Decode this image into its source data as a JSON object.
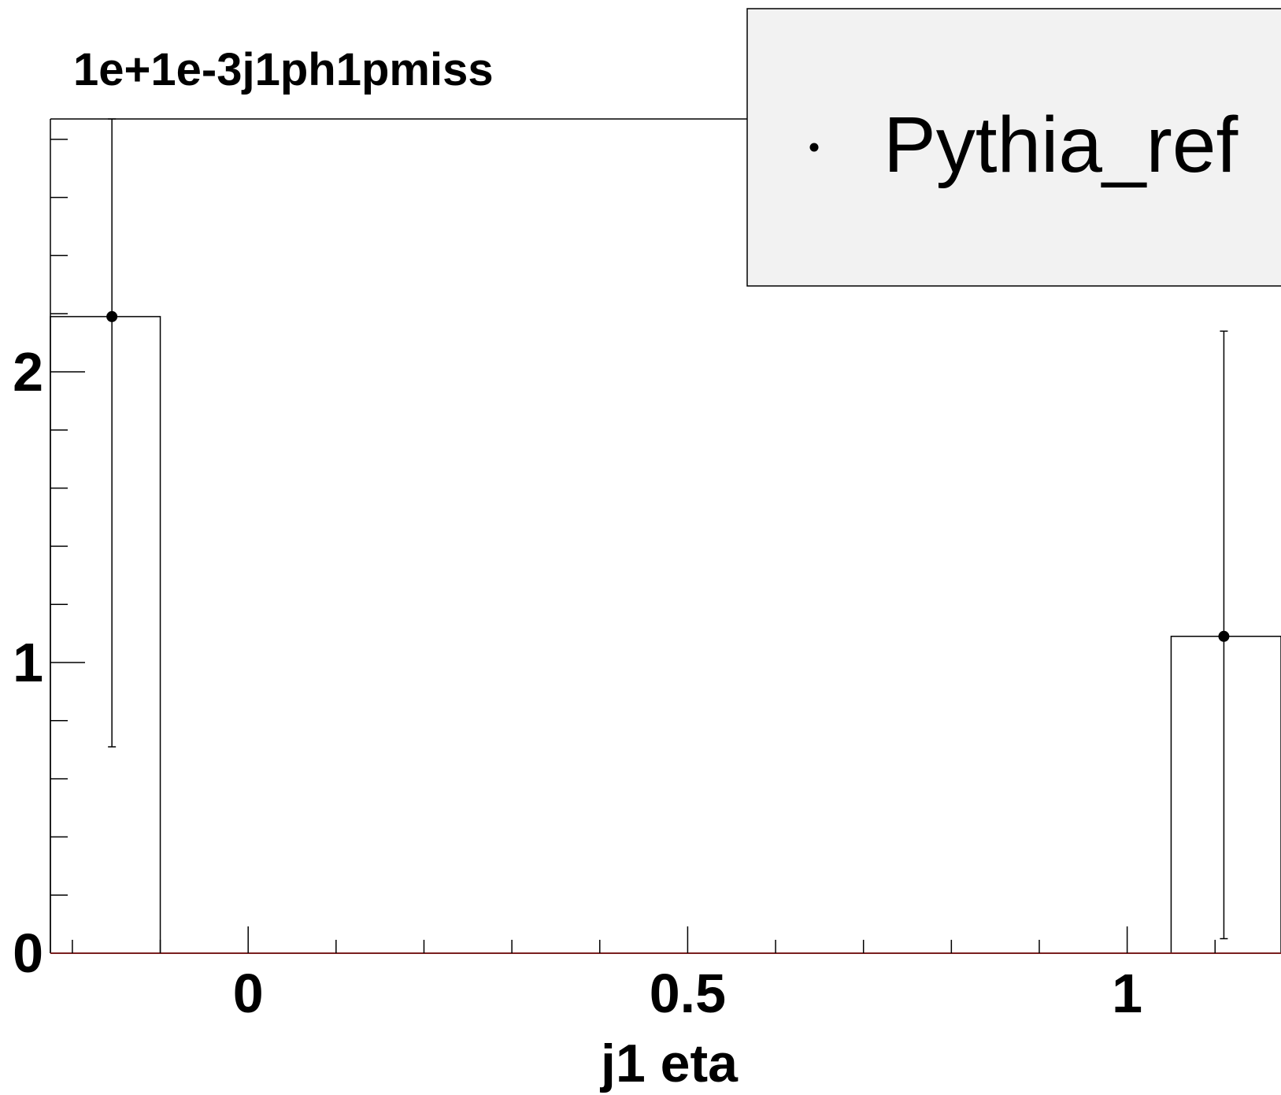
{
  "chart_data": {
    "type": "bar",
    "title": "1e+1e-3j1ph1pmiss",
    "xlabel": "j1 eta",
    "ylabel": "",
    "xlim": [
      -0.225,
      1.175
    ],
    "ylim": [
      0,
      2.87
    ],
    "x_ticks": [
      {
        "v": 0,
        "label": "0"
      },
      {
        "v": 0.5,
        "label": "0.5"
      },
      {
        "v": 1,
        "label": "1"
      }
    ],
    "y_ticks": [
      {
        "v": 0,
        "label": "0"
      },
      {
        "v": 1,
        "label": "1"
      },
      {
        "v": 2,
        "label": "2"
      }
    ],
    "series": [
      {
        "name": "Pythia_ref",
        "bins": [
          {
            "lo": -0.25,
            "hi": -0.1,
            "y": 2.19,
            "err_lo": 0.71,
            "err_hi": 2.87
          },
          {
            "lo": -0.1,
            "hi": 0.0,
            "y": 0
          },
          {
            "lo": 0.0,
            "hi": 1.05,
            "y": 0
          },
          {
            "lo": 1.05,
            "hi": 1.2,
            "y": 1.09,
            "err_lo": 0.05,
            "err_hi": 2.14
          }
        ],
        "points": [
          {
            "x": -0.155,
            "y": 2.19,
            "err_lo": 0.71,
            "err_hi": 2.87
          },
          {
            "x": 1.11,
            "y": 1.09,
            "err_lo": 0.05,
            "err_hi": 2.14
          }
        ]
      }
    ],
    "legend": {
      "position": "top-right",
      "entries": [
        "Pythia_ref"
      ]
    },
    "grid": false
  }
}
